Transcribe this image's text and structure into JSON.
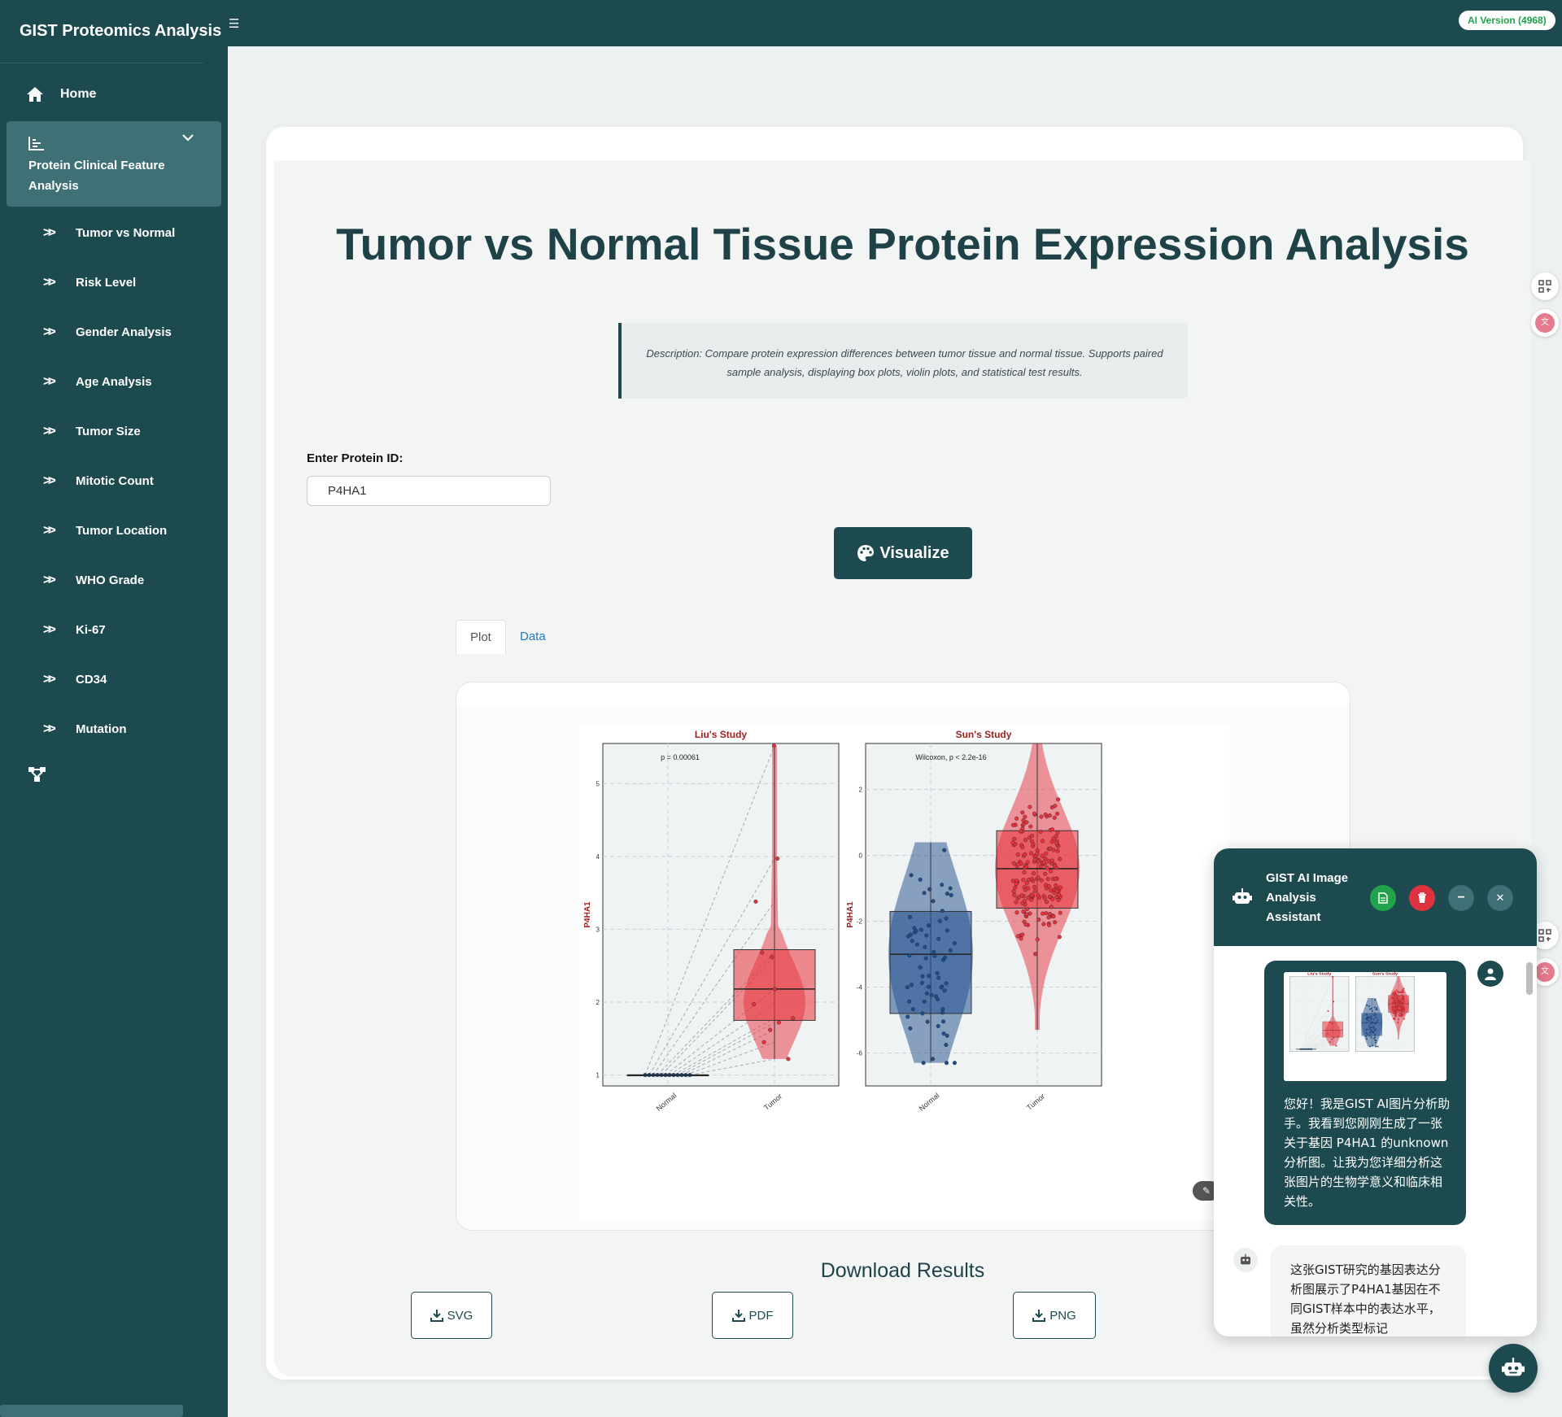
{
  "app": {
    "title": "GIST Proteomics Analysis Platform",
    "menu_toggle": "☰",
    "version_badge": "AI Version (4968)"
  },
  "sidebar": {
    "home": "Home",
    "group": "Protein Clinical Feature Analysis",
    "items": [
      "Tumor vs Normal",
      "Risk Level",
      "Gender Analysis",
      "Age Analysis",
      "Tumor Size",
      "Mitotic Count",
      "Tumor Location",
      "WHO Grade",
      "Ki-67",
      "CD34",
      "Mutation"
    ]
  },
  "main": {
    "title": "Tumor vs Normal Tissue Protein Expression Analysis",
    "description": "Description: Compare protein expression differences between tumor tissue and normal tissue. Supports paired sample analysis, displaying box plots, violin plots, and statistical test results.",
    "protein_label": "Enter Protein ID:",
    "protein_value": "P4HA1",
    "visualize_label": "Visualize",
    "tabs": [
      "Plot",
      "Data"
    ],
    "download_title": "Download Results",
    "downloads": [
      "SVG",
      "PDF",
      "PNG"
    ]
  },
  "chart_data": [
    {
      "type": "violin+box",
      "title": "Liu's Study",
      "annotation": "p = 0.00061",
      "ylabel": "P4HA1",
      "categories": [
        "Normal",
        "Tumor"
      ],
      "ylim": [
        0.85,
        5.55
      ],
      "yticks": [
        1,
        2,
        3,
        4,
        5
      ],
      "paired": true,
      "series": [
        {
          "category": "Normal",
          "color": "#1f4e8c",
          "median": 1.0,
          "q1": 1.0,
          "q3": 1.0,
          "min": 1.0,
          "max": 1.0,
          "points": [
            1.0,
            1.0,
            1.0,
            1.0,
            1.0,
            1.0,
            1.0,
            1.0,
            1.0,
            1.0,
            1.0,
            1.0
          ]
        },
        {
          "category": "Tumor",
          "color": "#e8323c",
          "median": 2.18,
          "q1": 1.75,
          "q3": 2.72,
          "min": 1.22,
          "max": 5.52,
          "points": [
            5.52,
            3.97,
            3.38,
            2.68,
            2.62,
            2.18,
            1.97,
            1.78,
            1.72,
            1.62,
            1.45,
            1.22
          ]
        }
      ]
    },
    {
      "type": "violin+box",
      "title": "Sun's Study",
      "annotation": "Wilcoxon, p < 2.2e-16",
      "ylabel": "P4HA1",
      "categories": [
        "Normal",
        "Tumor"
      ],
      "ylim": [
        -7.0,
        3.4
      ],
      "yticks": [
        -6,
        -4,
        -2,
        0,
        2
      ],
      "series": [
        {
          "category": "Normal",
          "color": "#1f4e8c",
          "median": -3.0,
          "q1": -4.8,
          "q3": -1.7,
          "min": -6.3,
          "max": 0.4
        },
        {
          "category": "Tumor",
          "color": "#e8323c",
          "median": -0.4,
          "q1": -1.6,
          "q3": 0.75,
          "min": -5.3,
          "max": 3.4
        }
      ]
    }
  ],
  "chat": {
    "title": "GIST AI Image Analysis Assistant",
    "user_message": "您好！我是GIST AI图片分析助手。我看到您刚刚生成了一张关于基因 P4HA1 的unknown分析图。让我为您详细分析这张图片的生物学意义和临床相关性。",
    "bot_message": "这张GIST研究的基因表达分析图展示了P4HA1基因在不同GIST样本中的表达水平，虽然分析类型标记",
    "buttons": {
      "minimize": "−",
      "close": "✕"
    }
  }
}
